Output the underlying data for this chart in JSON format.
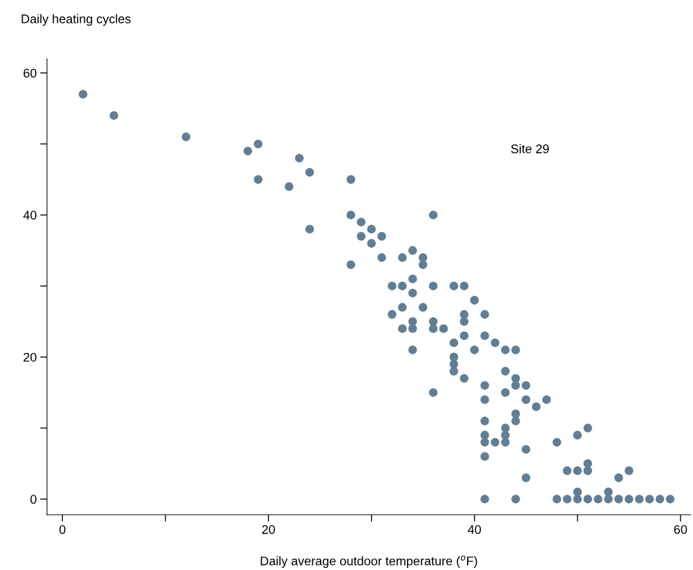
{
  "chart_data": {
    "type": "scatter",
    "ylabel": "Daily heating cycles",
    "xlabel": "Daily average outdoor temperature ($^{o}$F)",
    "annotations": [
      "Site 29"
    ],
    "marker": "circle",
    "grid": false,
    "xlim": [
      -1.5,
      61
    ],
    "ylim": [
      -2.2,
      62
    ],
    "xticks": [
      0,
      {
        "value": 10,
        "label": null
      },
      20,
      {
        "value": 30,
        "label": null
      },
      40,
      {
        "value": 50,
        "label": null
      },
      60
    ],
    "yticks": [
      0,
      {
        "value": 10,
        "label": null
      },
      20,
      {
        "value": 30,
        "label": null
      },
      40,
      {
        "value": 50,
        "label": null
      },
      60
    ],
    "series": [
      {
        "color": "#607f96",
        "x": [
          2,
          5,
          12,
          18,
          19,
          19,
          22,
          23,
          24,
          24,
          28,
          28,
          28,
          29,
          29,
          30,
          30,
          31,
          31,
          32,
          32,
          33,
          33,
          33,
          33,
          34,
          34,
          34,
          34,
          34,
          34,
          35,
          35,
          35,
          36,
          36,
          36,
          36,
          36,
          37,
          38,
          38,
          38,
          38,
          38,
          39,
          39,
          39,
          39,
          39,
          40,
          40,
          41,
          41,
          41,
          41,
          41,
          41,
          41,
          41,
          41,
          42,
          42,
          43,
          43,
          43,
          43,
          43,
          43,
          44,
          44,
          44,
          44,
          44,
          44,
          45,
          45,
          45,
          45,
          46,
          47,
          48,
          48,
          49,
          49,
          50,
          50,
          50,
          50,
          51,
          51,
          51,
          51,
          52,
          53,
          53,
          54,
          54,
          55,
          55,
          56,
          57,
          58,
          59
        ],
        "values": [
          57,
          54,
          51,
          49,
          50,
          45,
          44,
          48,
          46,
          38,
          45,
          40,
          33,
          39,
          37,
          38,
          36,
          37,
          34,
          30,
          26,
          34,
          30,
          27,
          24,
          35,
          31,
          29,
          25,
          24,
          21,
          34,
          33,
          27,
          40,
          30,
          25,
          24,
          15,
          24,
          30,
          22,
          20,
          19,
          18,
          30,
          26,
          25,
          23,
          17,
          28,
          21,
          26,
          23,
          16,
          14,
          11,
          9,
          8,
          6,
          0,
          22,
          8,
          21,
          18,
          15,
          10,
          9,
          8,
          21,
          17,
          16,
          12,
          11,
          0,
          16,
          14,
          7,
          3,
          13,
          14,
          8,
          0,
          4,
          0,
          9,
          4,
          1,
          0,
          10,
          5,
          4,
          0,
          0,
          1,
          0,
          3,
          0,
          4,
          0,
          0,
          0,
          0,
          0
        ]
      }
    ]
  }
}
